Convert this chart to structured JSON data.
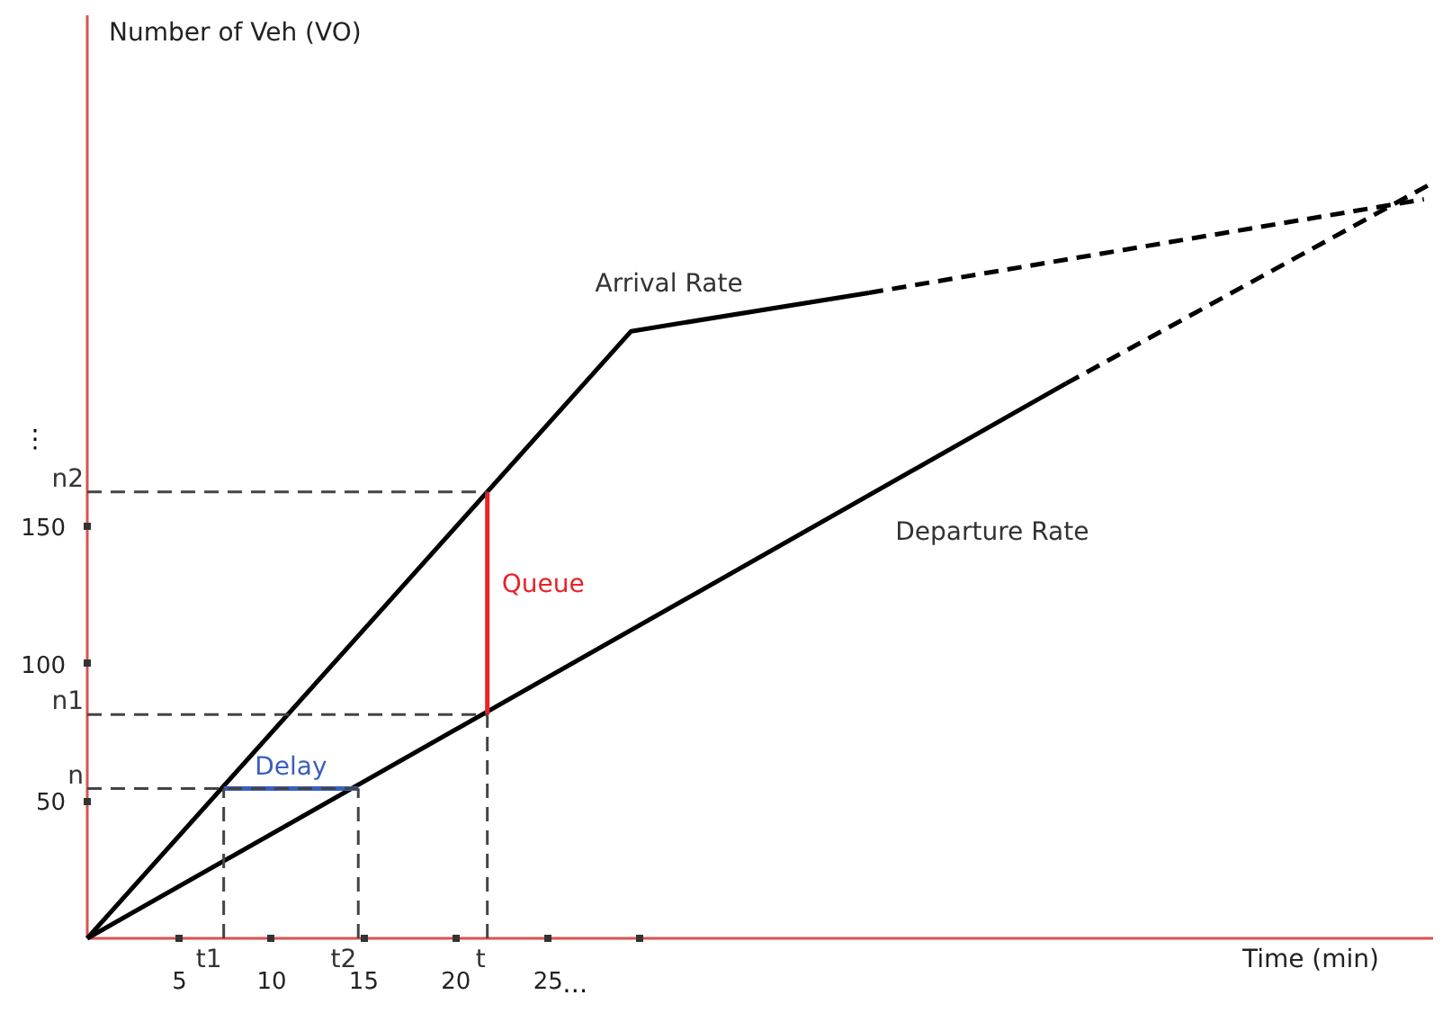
{
  "chart_data": {
    "type": "line",
    "xlabel": "Time (min)",
    "ylabel": "Number of Veh (VO)",
    "xlim": [
      0,
      73
    ],
    "ylim": [
      0,
      336
    ],
    "xticks": [
      5,
      10,
      15,
      20,
      25,
      {
        "value": 30,
        "label": null
      }
    ],
    "yticks": [
      50,
      100,
      150
    ],
    "grid": false,
    "legend": false,
    "marker": "none",
    "series": [
      {
        "name": "Arrival Rate",
        "color": "#000000",
        "x": [
          0,
          29.5,
          42.4
        ],
        "values": [
          0,
          221,
          235
        ]
      },
      {
        "color": "#000000",
        "x": [
          42.4,
          72.5
        ],
        "values": [
          235,
          269
        ],
        "line_style": "dashed"
      },
      {
        "name": "Departure Rate",
        "color": "#000000",
        "x": [
          0,
          53.1
        ],
        "values": [
          0,
          202
        ]
      },
      {
        "color": "#000000",
        "x": [
          53.1,
          72.7
        ],
        "values": [
          202,
          274
        ],
        "line_style": "dashed"
      },
      {
        "name": "Delay",
        "color": "#3b5fc0",
        "x": [
          7.4,
          14.7
        ],
        "values": [
          54.5,
          54.5
        ]
      },
      {
        "name": "Queue",
        "color": "#e8232a",
        "x": [
          21.7,
          21.7
        ],
        "values": [
          81.5,
          162.5
        ]
      },
      {
        "color": "#444444",
        "x": [
          0,
          14.7
        ],
        "values": [
          54.5,
          54.5
        ],
        "line_style": "dashed"
      },
      {
        "color": "#444444",
        "x": [
          7.4,
          7.4
        ],
        "values": [
          0,
          54.5
        ],
        "line_style": "dashed"
      },
      {
        "color": "#444444",
        "x": [
          14.7,
          14.7
        ],
        "values": [
          0,
          54.5
        ],
        "line_style": "dashed"
      },
      {
        "color": "#444444",
        "x": [
          0,
          21.7
        ],
        "values": [
          81.5,
          81.5
        ],
        "line_style": "dashed"
      },
      {
        "color": "#444444",
        "x": [
          0,
          21.7
        ],
        "values": [
          162.5,
          162.5
        ],
        "line_style": "dashed"
      },
      {
        "color": "#444444",
        "x": [
          21.7,
          21.7
        ],
        "values": [
          0,
          81.5
        ],
        "line_style": "dashed"
      }
    ],
    "annotations": [
      {
        "text": "n",
        "x": 0,
        "y": 54.5
      },
      {
        "text": "n1",
        "x": 0,
        "y": 81.5
      },
      {
        "text": "n2",
        "x": 0,
        "y": 162.5
      },
      "⋮",
      {
        "text": "t1",
        "x": 7.4,
        "y": 0
      },
      {
        "text": "t2",
        "x": 14.7,
        "y": 0
      },
      {
        "text": "t",
        "x": 21.7,
        "y": 0
      },
      "…"
    ]
  }
}
